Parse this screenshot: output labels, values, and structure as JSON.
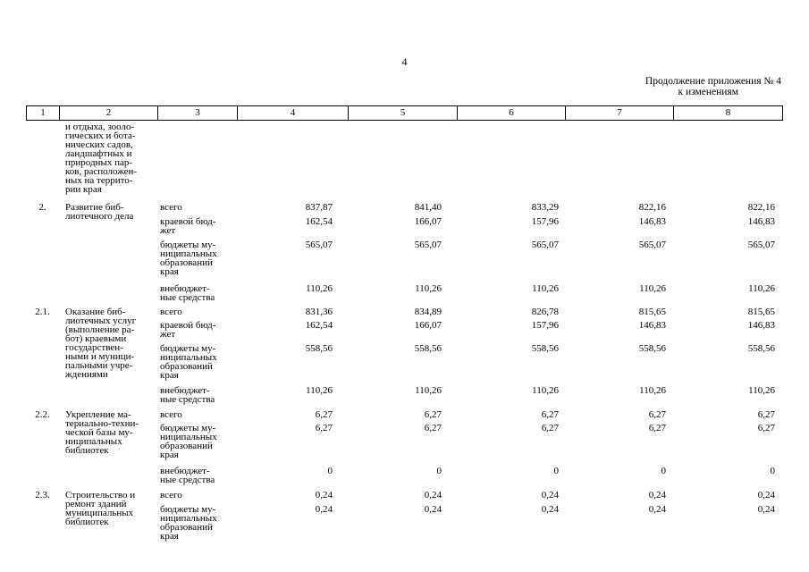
{
  "page_number": "4",
  "note": {
    "line1": "Продолжение приложения № 4",
    "line2": "к изменениям"
  },
  "header_cols": [
    "1",
    "2",
    "3",
    "4",
    "5",
    "6",
    "7",
    "8"
  ],
  "continuation_text": "и отдыха, зооло-\nгических и бота-\nнических садов,\nландшафтных и\nприродных пар-\nков, расположен-\nных на террито-\nрии края",
  "rows": [
    {
      "num": "2.",
      "name": "Развитие биб-\nлиотечного дела",
      "subs": [
        {
          "label": "всего",
          "values": [
            "837,87",
            "841,40",
            "833,29",
            "822,16",
            "822,16"
          ]
        },
        {
          "label": "краевой бюд-\nжет",
          "values": [
            "162,54",
            "166,07",
            "157,96",
            "146,83",
            "146,83"
          ]
        },
        {
          "label": "бюджеты му-\nниципальных\nобразований\nкрая",
          "values": [
            "565,07",
            "565,07",
            "565,07",
            "565,07",
            "565,07"
          ]
        },
        {
          "label": "внебюджет-\nные средства",
          "values": [
            "110,26",
            "110,26",
            "110,26",
            "110,26",
            "110,26"
          ]
        }
      ]
    },
    {
      "num": "2.1.",
      "name": "Оказание биб-\nлиотечных услуг\n(выполнение ра-\nбот) краевыми\nгосударствен-\nными и муници-\nпальными учре-\nждениями",
      "subs": [
        {
          "label": "всего",
          "values": [
            "831,36",
            "834,89",
            "826,78",
            "815,65",
            "815,65"
          ]
        },
        {
          "label": "краевой бюд-\nжет",
          "values": [
            "162,54",
            "166,07",
            "157,96",
            "146,83",
            "146,83"
          ]
        },
        {
          "label": "бюджеты му-\nниципальных\nобразований\nкрая",
          "values": [
            "558,56",
            "558,56",
            "558,56",
            "558,56",
            "558,56"
          ]
        },
        {
          "label": "внебюджет-\nные средства",
          "values": [
            "110,26",
            "110,26",
            "110,26",
            "110,26",
            "110,26"
          ]
        }
      ]
    },
    {
      "num": "2.2.",
      "name": "Укрепление ма-\nтериально-техни-\nческой базы му-\nниципальных\nбиблиотек",
      "subs": [
        {
          "label": "всего",
          "values": [
            "6,27",
            "6,27",
            "6,27",
            "6,27",
            "6,27"
          ]
        },
        {
          "label": "бюджеты му-\nниципальных\nобразований\nкрая",
          "values": [
            "6,27",
            "6,27",
            "6,27",
            "6,27",
            "6,27"
          ]
        },
        {
          "label": "внебюджет-\nные средства",
          "values": [
            "0",
            "0",
            "0",
            "0",
            "0"
          ]
        }
      ]
    },
    {
      "num": "2.3.",
      "name": "Строительство и\nремонт зданий\nмуниципальных\nбиблиотек",
      "subs": [
        {
          "label": "всего",
          "values": [
            "0,24",
            "0,24",
            "0,24",
            "0,24",
            "0,24"
          ]
        },
        {
          "label": "бюджеты му-\nниципальных\nобразований\nкрая",
          "values": [
            "0,24",
            "0,24",
            "0,24",
            "0,24",
            "0,24"
          ]
        }
      ]
    }
  ]
}
